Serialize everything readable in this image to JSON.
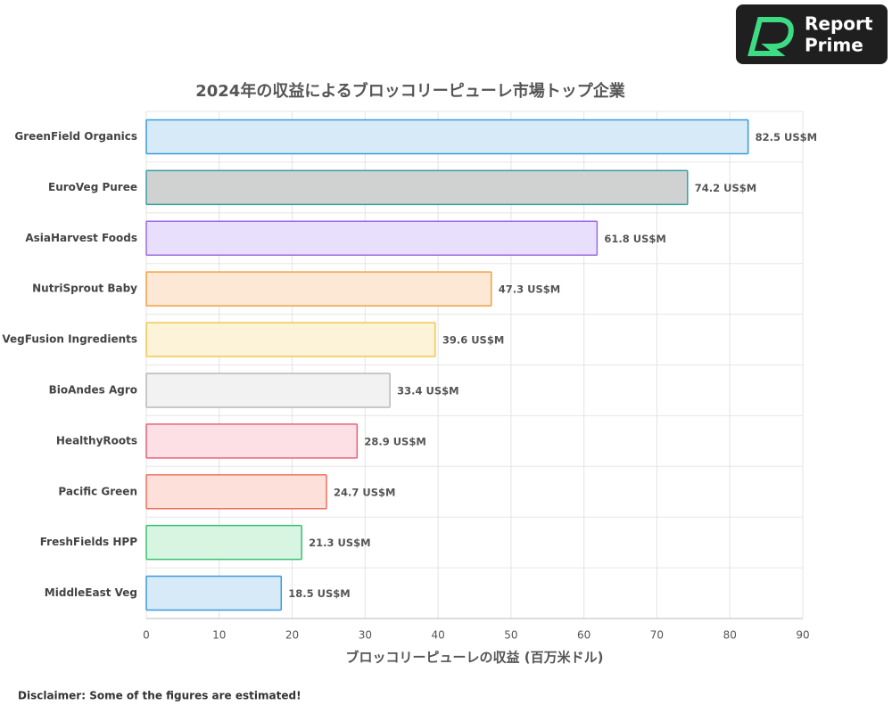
{
  "chart_data": {
    "type": "bar",
    "orientation": "horizontal",
    "title": "2024年の収益によるブロッコリーピューレ市場トップ企業",
    "x_label": "ブロッコリーピューレの収益 (百万米ドル)",
    "categories": [
      "GreenField Organics",
      "EuroVeg Puree",
      "AsiaHarvest Foods",
      "NutriSprout Baby",
      "VegFusion Ingredients",
      "BioAndes Agro",
      "HealthyRoots",
      "Pacific Green",
      "FreshFields HPP",
      "MiddleEast Veg"
    ],
    "values": [
      82.5,
      74.2,
      61.8,
      47.3,
      39.6,
      33.4,
      28.9,
      24.7,
      21.3,
      18.5
    ],
    "value_labels": [
      "82.5 US$M",
      "74.2 US$M",
      "61.8 US$M",
      "47.3 US$M",
      "39.6 US$M",
      "33.4 US$M",
      "28.9 US$M",
      "24.7 US$M",
      "21.3 US$M",
      "18.5 US$M"
    ],
    "colors": [
      "#3a9bdc",
      "#3a9fa8",
      "#9b6be0",
      "#f0a040",
      "#f0c850",
      "#b8b8b8",
      "#e8607a",
      "#f07060",
      "#3cc070",
      "#3a9bdc"
    ],
    "fills": [
      "#d6eaf8",
      "#d0d2d2",
      "#e8dffc",
      "#fde8d6",
      "#fdf3d9",
      "#f2f2f2",
      "#fde0e6",
      "#fde0da",
      "#d8f5e2",
      "#d6eaf8"
    ],
    "xlim": [
      0,
      90
    ],
    "xticks": [
      0,
      10,
      20,
      30,
      40,
      50,
      60,
      70,
      80,
      90
    ],
    "grid": true
  },
  "logo": {
    "line1": "Report",
    "line2": "Prime"
  },
  "disclaimer": "Disclaimer: Some of the figures are estimated!"
}
